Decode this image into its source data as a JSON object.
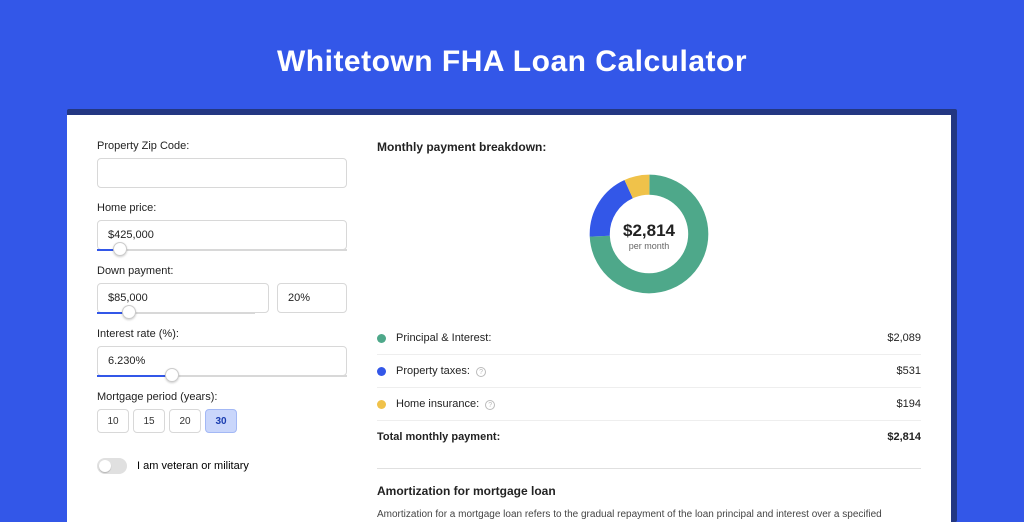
{
  "page": {
    "title": "Whitetown FHA Loan Calculator",
    "bg_color": "#3357e8",
    "card_shadow_color": "#233782",
    "card_bg": "#ffffff"
  },
  "form": {
    "zip": {
      "label": "Property Zip Code:",
      "value": ""
    },
    "home_price": {
      "label": "Home price:",
      "value": "$425,000",
      "slider_pct": 9
    },
    "down_payment": {
      "label": "Down payment:",
      "amount": "$85,000",
      "percent": "20%",
      "slider_pct": 20
    },
    "interest_rate": {
      "label": "Interest rate (%):",
      "value": "6.230%",
      "slider_pct": 30
    },
    "mortgage_period": {
      "label": "Mortgage period (years):",
      "options": [
        "10",
        "15",
        "20",
        "30"
      ],
      "active": "30"
    },
    "veteran": {
      "label": "I am veteran or military",
      "on": false
    }
  },
  "breakdown": {
    "title": "Monthly payment breakdown:",
    "center_amount": "$2,814",
    "center_sub": "per month",
    "donut": {
      "slices": [
        {
          "color": "#4ea88a",
          "pct": 74.2
        },
        {
          "color": "#3357e8",
          "pct": 18.9
        },
        {
          "color": "#f0c24a",
          "pct": 6.9
        }
      ]
    },
    "items": [
      {
        "color": "#4ea88a",
        "label": "Principal & Interest:",
        "value": "$2,089",
        "info": false
      },
      {
        "color": "#3357e8",
        "label": "Property taxes:",
        "value": "$531",
        "info": true
      },
      {
        "color": "#f0c24a",
        "label": "Home insurance:",
        "value": "$194",
        "info": true
      }
    ],
    "total": {
      "label": "Total monthly payment:",
      "value": "$2,814"
    }
  },
  "amortization": {
    "title": "Amortization for mortgage loan",
    "text": "Amortization for a mortgage loan refers to the gradual repayment of the loan principal and interest over a specified"
  }
}
